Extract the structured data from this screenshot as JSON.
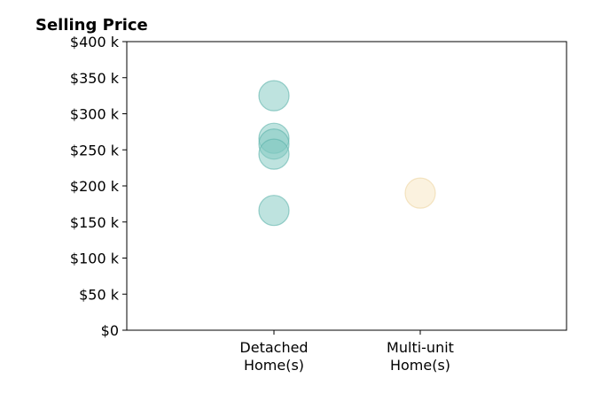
{
  "chart_data": {
    "type": "scatter",
    "title": "Selling Price",
    "xlabel": "",
    "ylabel": "",
    "categories": [
      [
        "Detached",
        "Home(s)"
      ],
      [
        "Multi-unit",
        "Home(s)"
      ]
    ],
    "ylim": [
      0,
      400000
    ],
    "yticks": [
      0,
      50000,
      100000,
      150000,
      200000,
      250000,
      300000,
      350000,
      400000
    ],
    "ytick_labels": [
      "$0",
      "$50 k",
      "$100 k",
      "$150 k",
      "$200 k",
      "$250 k",
      "$300 k",
      "$350 k",
      "$400 k"
    ],
    "grid": false,
    "series": [
      {
        "category_index": 0,
        "color": "#7ec8c0",
        "stroke": "#5bb3aa",
        "values": [
          325000,
          266000,
          258000,
          244000,
          166000
        ]
      },
      {
        "category_index": 1,
        "color": "#f7e6bf",
        "stroke": "#ecd49e",
        "values": [
          190000
        ]
      }
    ]
  }
}
